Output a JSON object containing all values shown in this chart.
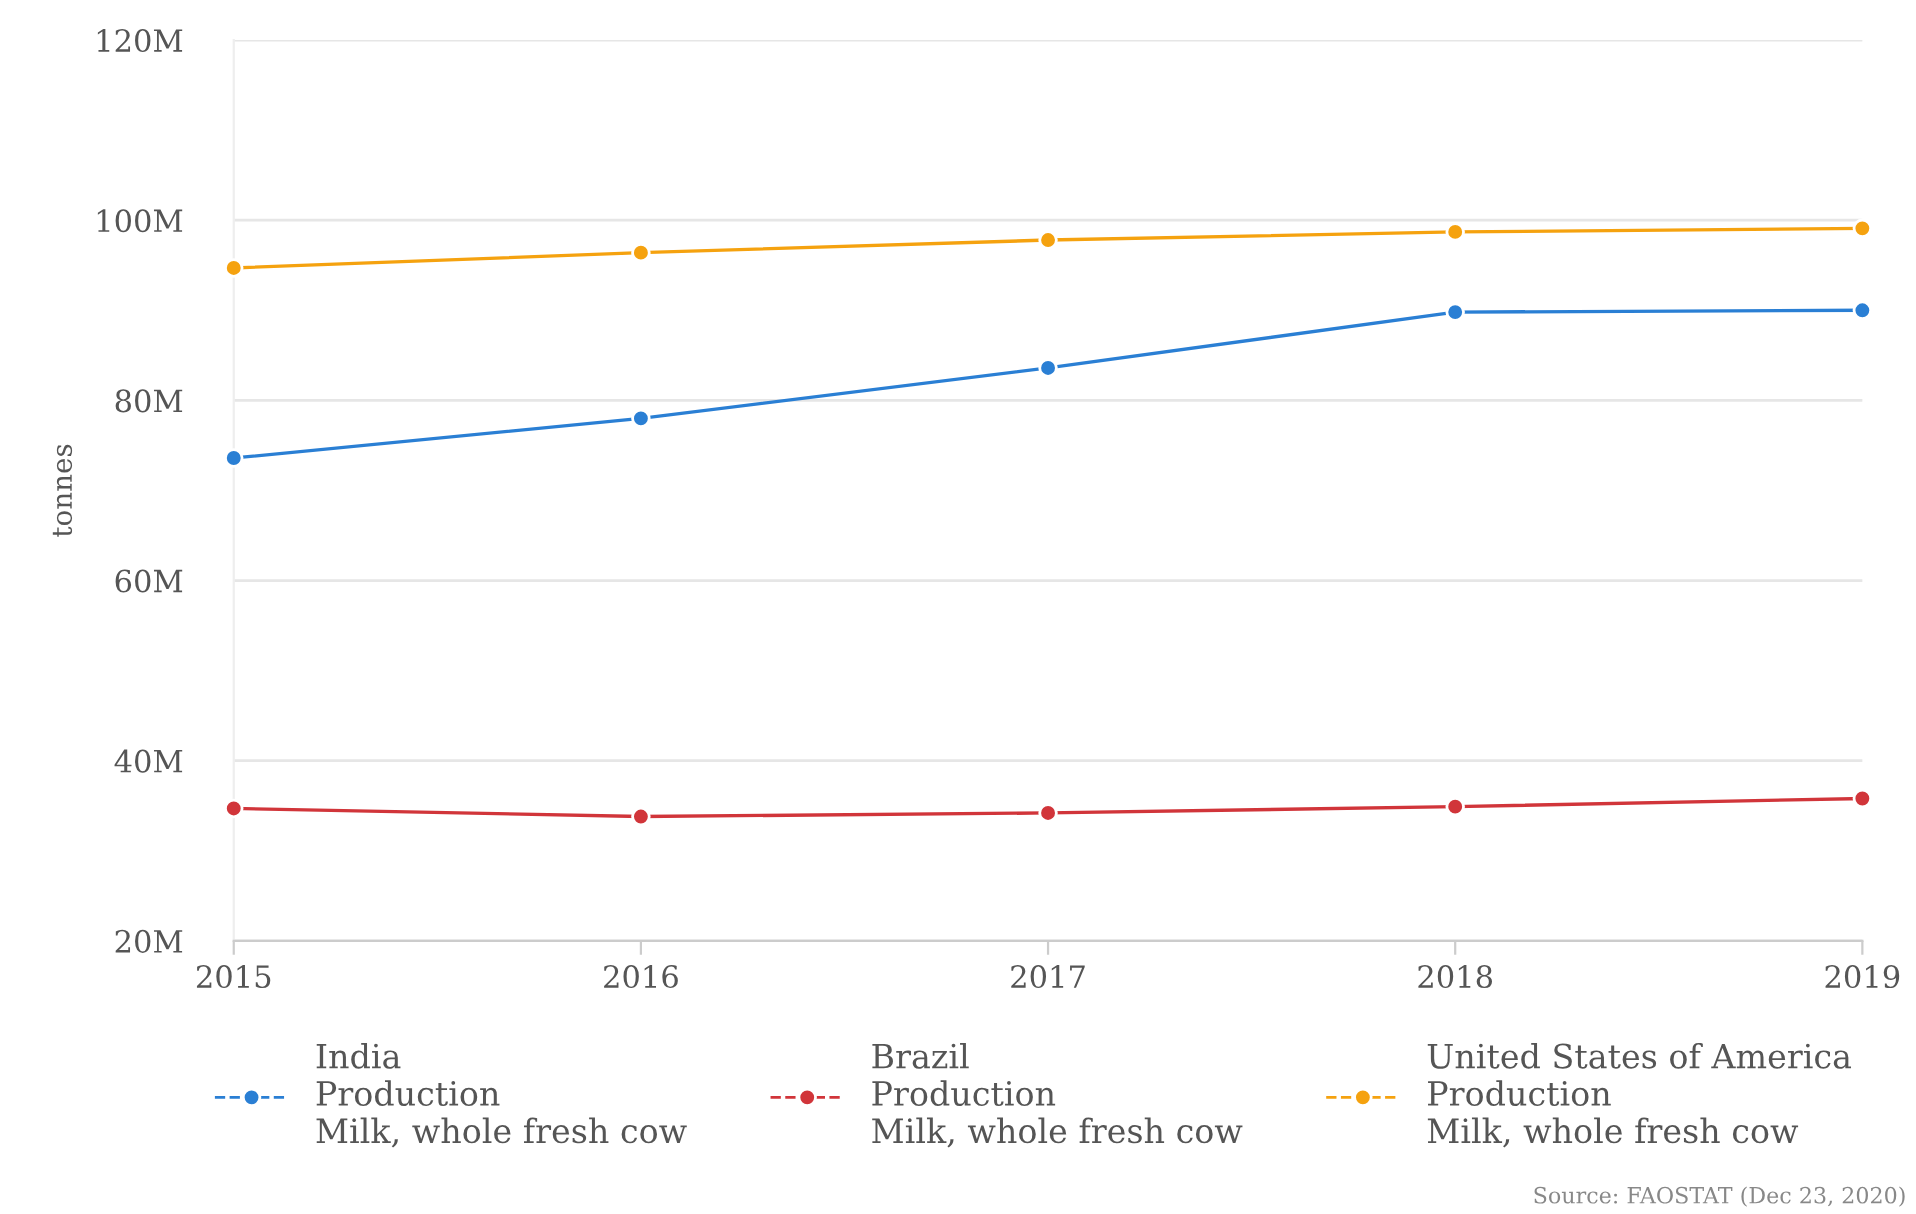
{
  "chart_data": {
    "type": "line",
    "ylabel": "tonnes",
    "x": [
      2015,
      2016,
      2017,
      2018,
      2019
    ],
    "series": [
      {
        "name": "India\nProduction\nMilk, whole fresh cow",
        "color": "#2a7fd4",
        "values": [
          73600000,
          78000000,
          83600000,
          89800000,
          90000000
        ]
      },
      {
        "name": "Brazil\nProduction\nMilk, whole fresh cow",
        "color": "#d1353a",
        "values": [
          34700000,
          33800000,
          34200000,
          34900000,
          35800000
        ]
      },
      {
        "name": "United States of America\nProduction\nMilk, whole fresh cow",
        "color": "#f5a20f",
        "values": [
          94700000,
          96400000,
          97800000,
          98700000,
          99100000
        ]
      }
    ],
    "xlim": [
      2015,
      2019
    ],
    "xticks": [
      2015,
      2016,
      2017,
      2018,
      2019
    ],
    "ylim": [
      20000000,
      120000000
    ],
    "yticks": [
      {
        "value": 20000000,
        "label": "20M"
      },
      {
        "value": 40000000,
        "label": "40M"
      },
      {
        "value": 60000000,
        "label": "60M"
      },
      {
        "value": 80000000,
        "label": "80M"
      },
      {
        "value": 100000000,
        "label": "100M"
      },
      {
        "value": 120000000,
        "label": "120M"
      }
    ],
    "grid": "y",
    "legend": "bottom",
    "marker": "circle",
    "line_style": "solid",
    "annotations": [
      "Source: FAOSTAT (Dec 23, 2020)"
    ]
  }
}
